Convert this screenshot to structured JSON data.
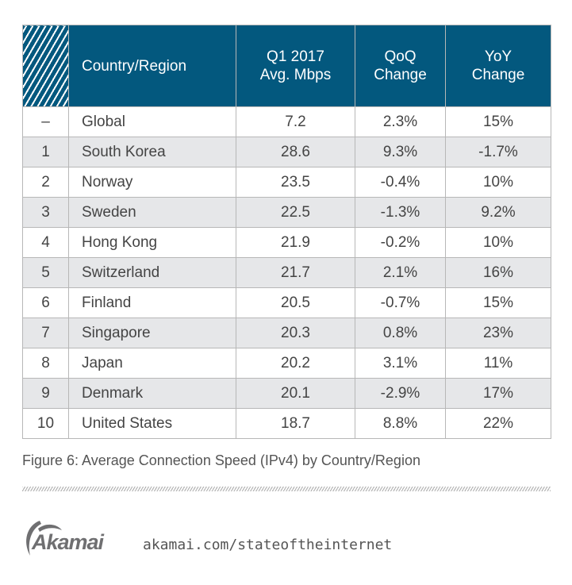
{
  "table": {
    "headers": {
      "rank": "",
      "country": "Country/Region",
      "mbps_line1": "Q1 2017",
      "mbps_line2": "Avg. Mbps",
      "qoq_line1": "QoQ",
      "qoq_line2": "Change",
      "yoy_line1": "YoY",
      "yoy_line2": "Change"
    },
    "rows": [
      {
        "rank": "–",
        "country": "Global",
        "mbps": "7.2",
        "qoq": "2.3%",
        "yoy": "15%"
      },
      {
        "rank": "1",
        "country": "South Korea",
        "mbps": "28.6",
        "qoq": "9.3%",
        "yoy": "-1.7%"
      },
      {
        "rank": "2",
        "country": "Norway",
        "mbps": "23.5",
        "qoq": "-0.4%",
        "yoy": "10%"
      },
      {
        "rank": "3",
        "country": "Sweden",
        "mbps": "22.5",
        "qoq": "-1.3%",
        "yoy": "9.2%"
      },
      {
        "rank": "4",
        "country": "Hong Kong",
        "mbps": "21.9",
        "qoq": "-0.2%",
        "yoy": "10%"
      },
      {
        "rank": "5",
        "country": "Switzerland",
        "mbps": "21.7",
        "qoq": "2.1%",
        "yoy": "16%"
      },
      {
        "rank": "6",
        "country": "Finland",
        "mbps": "20.5",
        "qoq": "-0.7%",
        "yoy": "15%"
      },
      {
        "rank": "7",
        "country": "Singapore",
        "mbps": "20.3",
        "qoq": "0.8%",
        "yoy": "23%"
      },
      {
        "rank": "8",
        "country": "Japan",
        "mbps": "20.2",
        "qoq": "3.1%",
        "yoy": "11%"
      },
      {
        "rank": "9",
        "country": "Denmark",
        "mbps": "20.1",
        "qoq": "-2.9%",
        "yoy": "17%"
      },
      {
        "rank": "10",
        "country": "United States",
        "mbps": "18.7",
        "qoq": "8.8%",
        "yoy": "22%"
      }
    ]
  },
  "caption": "Figure 6: Average Connection Speed (IPv4) by Country/Region",
  "footer": {
    "logo_text": "Akamai",
    "logo_icon": "akamai-wave-icon",
    "url": "akamai.com/stateoftheinternet"
  },
  "colors": {
    "header_bg": "#03587e",
    "stripe_bg": "#e6e7e9",
    "text": "#444444",
    "logo_gray": "#6f6f71"
  }
}
